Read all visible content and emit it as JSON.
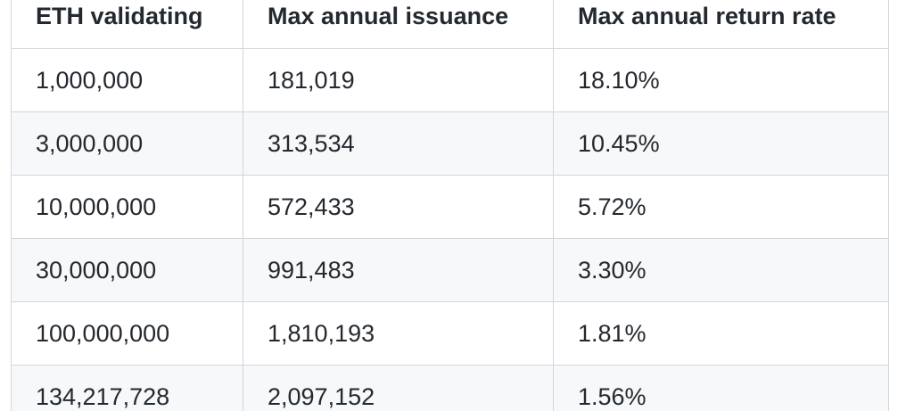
{
  "table": {
    "headers": [
      "ETH validating",
      "Max annual issuance",
      "Max annual return rate"
    ],
    "rows": [
      [
        "1,000,000",
        "181,019",
        "18.10%"
      ],
      [
        "3,000,000",
        "313,534",
        "10.45%"
      ],
      [
        "10,000,000",
        "572,433",
        "5.72%"
      ],
      [
        "30,000,000",
        "991,483",
        "3.30%"
      ],
      [
        "100,000,000",
        "1,810,193",
        "1.81%"
      ],
      [
        "134,217,728",
        "2,097,152",
        "1.56%"
      ]
    ]
  },
  "colors": {
    "border": "#d0d7de",
    "stripe": "#f6f8fa",
    "text": "#24292f"
  }
}
